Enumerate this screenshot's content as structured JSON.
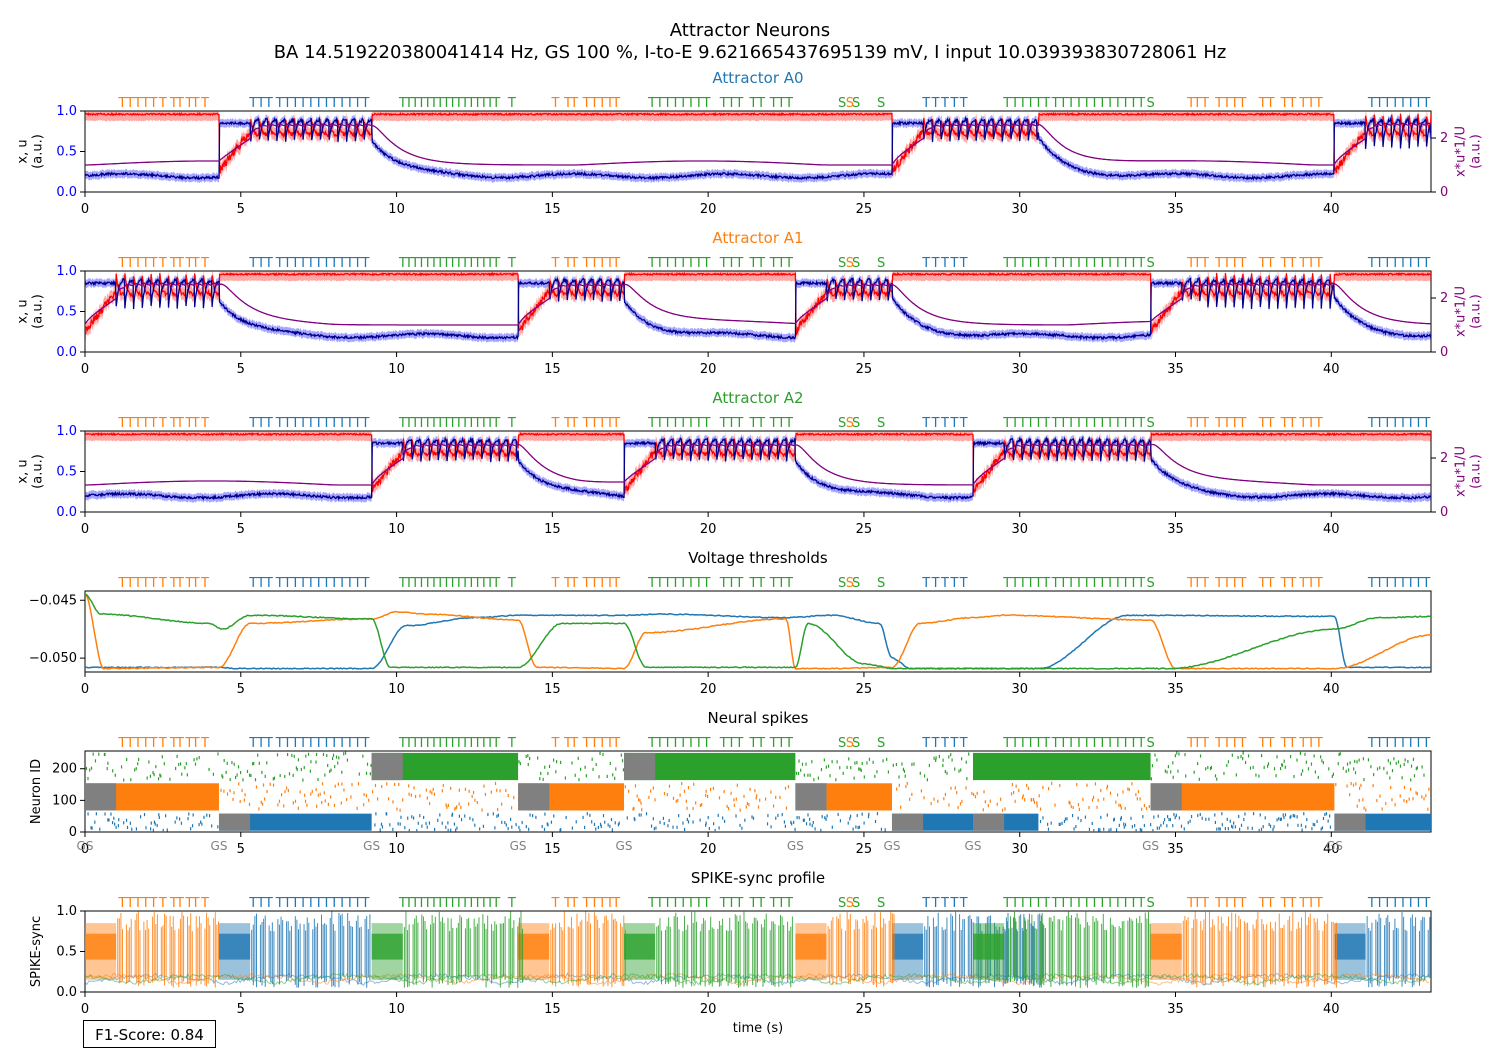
{
  "figure": {
    "title": "Attractor Neurons",
    "subtitle": "BA 14.519220380041414 Hz, GS 100 %, I-to-E 9.621665437695139 mV, I input 10.039393830728061 Hz",
    "xlabel": "time (s)",
    "f1_label": "F1-Score: 0.84"
  },
  "colors": {
    "a0": "#1f77b4",
    "a1": "#ff7f0e",
    "a2": "#2ca02c",
    "x": "#0000ff",
    "u": "#ff0000",
    "xu": "#800080",
    "gs": "#808080"
  },
  "chart_data": [
    {
      "type": "line",
      "title": "Attractor A0",
      "ylabel": "x, u\n(a.u.)",
      "ylabel2": "x*u*1/U\n(a.u.)",
      "xlim": [
        0,
        43.2
      ],
      "ylim": [
        0.0,
        1.0
      ],
      "xticks": [
        0,
        5,
        10,
        15,
        20,
        25,
        30,
        35,
        40
      ],
      "yticks": [
        "0.0",
        "0.5",
        "1.0"
      ],
      "y2ticks": [
        "0",
        "2"
      ],
      "active_intervals": [
        [
          4.3,
          9.2
        ],
        [
          25.9,
          30.6
        ],
        [
          40.1,
          43.2
        ]
      ],
      "series": [
        {
          "role": "x",
          "resting": 0.2,
          "peak": 0.87,
          "oscillating": 0.65
        },
        {
          "role": "u",
          "resting": 0.95,
          "peak": 1.0,
          "oscillating": 0.7
        },
        {
          "role": "x*u*1/U",
          "resting": 1.0,
          "peak": 2.8
        }
      ]
    },
    {
      "type": "line",
      "title": "Attractor A1",
      "ylabel": "x, u\n(a.u.)",
      "ylabel2": "x*u*1/U\n(a.u.)",
      "xlim": [
        0,
        43.2
      ],
      "ylim": [
        0.0,
        1.0
      ],
      "xticks": [
        0,
        5,
        10,
        15,
        20,
        25,
        30,
        35,
        40
      ],
      "yticks": [
        "0.0",
        "0.5",
        "1.0"
      ],
      "y2ticks": [
        "0",
        "2"
      ],
      "active_intervals": [
        [
          0.0,
          4.3
        ],
        [
          13.9,
          17.3
        ],
        [
          22.8,
          25.9
        ],
        [
          34.2,
          40.1
        ]
      ],
      "series": [
        {
          "role": "x",
          "resting": 0.25,
          "peak": 0.87,
          "oscillating": 0.7
        },
        {
          "role": "u",
          "resting": 0.95,
          "peak": 1.0,
          "oscillating": 0.75
        },
        {
          "role": "x*u*1/U",
          "resting": 1.0,
          "peak": 2.8
        }
      ]
    },
    {
      "type": "line",
      "title": "Attractor A2",
      "ylabel": "x, u\n(a.u.)",
      "ylabel2": "x*u*1/U\n(a.u.)",
      "xlim": [
        0,
        43.2
      ],
      "ylim": [
        0.0,
        1.0
      ],
      "xticks": [
        0,
        5,
        10,
        15,
        20,
        25,
        30,
        35,
        40
      ],
      "yticks": [
        "0.0",
        "0.5",
        "1.0"
      ],
      "y2ticks": [
        "0",
        "2"
      ],
      "active_intervals": [
        [
          9.2,
          13.9
        ],
        [
          17.3,
          22.8
        ],
        [
          28.5,
          34.2
        ]
      ],
      "series": [
        {
          "role": "x",
          "resting": 0.2,
          "peak": 0.87,
          "oscillating": 0.7
        },
        {
          "role": "u",
          "resting": 0.95,
          "peak": 1.0,
          "oscillating": 0.75
        },
        {
          "role": "x*u*1/U",
          "resting": 1.0,
          "peak": 2.8
        }
      ]
    },
    {
      "type": "line",
      "title": "Voltage thresholds",
      "xlim": [
        0,
        43.2
      ],
      "ylim": [
        -0.0512,
        -0.0442
      ],
      "xticks": [
        0,
        5,
        10,
        15,
        20,
        25,
        30,
        35,
        40
      ],
      "yticks": [
        "−0.045",
        "−0.050"
      ],
      "series": [
        {
          "name": "A0",
          "x": [
            0,
            4.3,
            4.8,
            9.2,
            10.3,
            12.5,
            14.0,
            17.3,
            18.5,
            22.5,
            24.0,
            25.5,
            25.9,
            26.5,
            28.5,
            30.6,
            33.5,
            40.1,
            40.5,
            43.2
          ],
          "y": [
            -0.0508,
            -0.0508,
            -0.0509,
            -0.0509,
            -0.0472,
            -0.0465,
            -0.0463,
            -0.0463,
            -0.0462,
            -0.0465,
            -0.0463,
            -0.047,
            -0.05,
            -0.0509,
            -0.0509,
            -0.0509,
            -0.0463,
            -0.0464,
            -0.0508,
            -0.0508
          ]
        },
        {
          "name": "A1",
          "x": [
            0,
            0.6,
            4.3,
            5.3,
            9.2,
            10.0,
            11.0,
            13.9,
            14.5,
            17.3,
            18.0,
            22.5,
            22.8,
            24.0,
            25.9,
            26.8,
            28.5,
            29.5,
            34.2,
            35.0,
            40.1,
            43.2
          ],
          "y": [
            -0.0445,
            -0.0509,
            -0.0508,
            -0.047,
            -0.0466,
            -0.046,
            -0.0462,
            -0.0467,
            -0.0508,
            -0.0509,
            -0.0478,
            -0.0466,
            -0.0509,
            -0.0509,
            -0.0508,
            -0.047,
            -0.0465,
            -0.0463,
            -0.0467,
            -0.0509,
            -0.0509,
            -0.048
          ]
        },
        {
          "name": "A2",
          "x": [
            0,
            0.5,
            4.0,
            4.4,
            5.3,
            9.2,
            9.8,
            13.9,
            15.3,
            17.3,
            18.0,
            22.8,
            23.2,
            25.0,
            26.0,
            26.8,
            28.5,
            29.5,
            34.2,
            34.8,
            40.1,
            41.5,
            43.2
          ],
          "y": [
            -0.0445,
            -0.0462,
            -0.047,
            -0.0475,
            -0.0463,
            -0.0466,
            -0.0508,
            -0.0508,
            -0.047,
            -0.047,
            -0.0508,
            -0.0508,
            -0.047,
            -0.0505,
            -0.0509,
            -0.0509,
            -0.0509,
            -0.0509,
            -0.0509,
            -0.0509,
            -0.0475,
            -0.0465,
            -0.0464
          ]
        }
      ]
    },
    {
      "type": "scatter",
      "title": "Neural spikes",
      "ylabel": "Neuron ID",
      "xlim": [
        0,
        43.2
      ],
      "ylim": [
        0,
        256
      ],
      "xticks": [
        0,
        5,
        10,
        15,
        20,
        25,
        30,
        35,
        40
      ],
      "yticks": [
        "0",
        "100",
        "200"
      ],
      "gs_label": "GS",
      "gs_windows": [
        [
          0.0,
          1.0
        ],
        [
          4.3,
          5.3
        ],
        [
          9.2,
          10.2
        ],
        [
          13.9,
          14.9
        ],
        [
          17.3,
          18.3
        ],
        [
          22.8,
          23.8
        ],
        [
          25.9,
          26.9
        ],
        [
          28.5,
          29.5
        ],
        [
          34.2,
          35.2
        ],
        [
          40.1,
          41.1
        ]
      ],
      "bands": [
        {
          "name": "A0",
          "id_range": [
            0,
            64
          ]
        },
        {
          "name": "A1",
          "id_range": [
            64,
            160
          ]
        },
        {
          "name": "A2",
          "id_range": [
            160,
            256
          ]
        }
      ]
    },
    {
      "type": "area",
      "title": "SPIKE-sync profile",
      "ylabel": "SPIKE-sync",
      "xlim": [
        0,
        43.2
      ],
      "ylim": [
        0.0,
        1.0
      ],
      "xticks": [
        0,
        5,
        10,
        15,
        20,
        25,
        30,
        35,
        40
      ],
      "yticks": [
        "0.0",
        "0.5",
        "1.0"
      ],
      "series": [
        {
          "name": "A0",
          "active_mean": 0.55,
          "burst_max": 1.0
        },
        {
          "name": "A1",
          "active_mean": 0.55,
          "burst_max": 1.0
        },
        {
          "name": "A2",
          "active_mean": 0.6,
          "burst_max": 1.0
        }
      ]
    }
  ],
  "top_markers": [
    {
      "attractor": "A1",
      "letter": "T",
      "times": [
        1.2,
        1.45,
        1.7,
        1.95,
        2.2,
        2.5,
        2.85,
        3.05,
        3.35,
        3.55,
        3.85
      ]
    },
    {
      "attractor": "A0",
      "letter": "T",
      "times": [
        5.4,
        5.65,
        5.9,
        6.25,
        6.5,
        6.75,
        7.0,
        7.25,
        7.5,
        7.75,
        8.0,
        8.25,
        8.5,
        8.75,
        9.0
      ]
    },
    {
      "attractor": "A2",
      "letter": "T",
      "times": [
        10.2,
        10.4,
        10.6,
        10.8,
        11.0,
        11.2,
        11.4,
        11.6,
        11.8,
        12.0,
        12.2,
        12.4,
        12.6,
        12.8,
        13.0,
        13.2,
        13.7
      ]
    },
    {
      "attractor": "A1",
      "letter": "T",
      "times": [
        15.1,
        15.5,
        15.7,
        16.1,
        16.35,
        16.6,
        16.85,
        17.05
      ]
    },
    {
      "attractor": "A2",
      "letter": "T",
      "times": [
        18.2,
        18.45,
        18.7,
        18.95,
        19.2,
        19.45,
        19.7,
        19.95,
        20.5,
        20.75,
        21.0,
        21.45,
        21.7,
        22.1,
        22.35,
        22.6
      ]
    },
    {
      "attractor": "A2",
      "letter": "S",
      "times": [
        24.3
      ]
    },
    {
      "attractor": "A1",
      "letter": "S",
      "times": [
        24.55
      ]
    },
    {
      "attractor": "A2",
      "letter": "S",
      "times": [
        24.75,
        25.55
      ]
    },
    {
      "attractor": "A0",
      "letter": "T",
      "times": [
        27.0,
        27.3,
        27.6,
        27.9,
        28.2
      ]
    },
    {
      "attractor": "A2",
      "letter": "T",
      "times": [
        29.6,
        29.85,
        30.1,
        30.35,
        30.6,
        30.85,
        31.15,
        31.4,
        31.65,
        31.9,
        32.15,
        32.4,
        32.65,
        32.9,
        33.15,
        33.4,
        33.65,
        33.9
      ]
    },
    {
      "attractor": "A2",
      "letter": "S",
      "times": [
        34.2
      ]
    },
    {
      "attractor": "A1",
      "letter": "T",
      "times": [
        35.5,
        35.7,
        35.95,
        36.4,
        36.65,
        36.9,
        37.15,
        37.8,
        38.05,
        38.5,
        38.75,
        39.1,
        39.35,
        39.6
      ]
    },
    {
      "attractor": "A0",
      "letter": "T",
      "times": [
        41.3,
        41.55,
        41.8,
        42.05,
        42.3,
        42.55,
        42.8,
        43.05
      ]
    }
  ]
}
